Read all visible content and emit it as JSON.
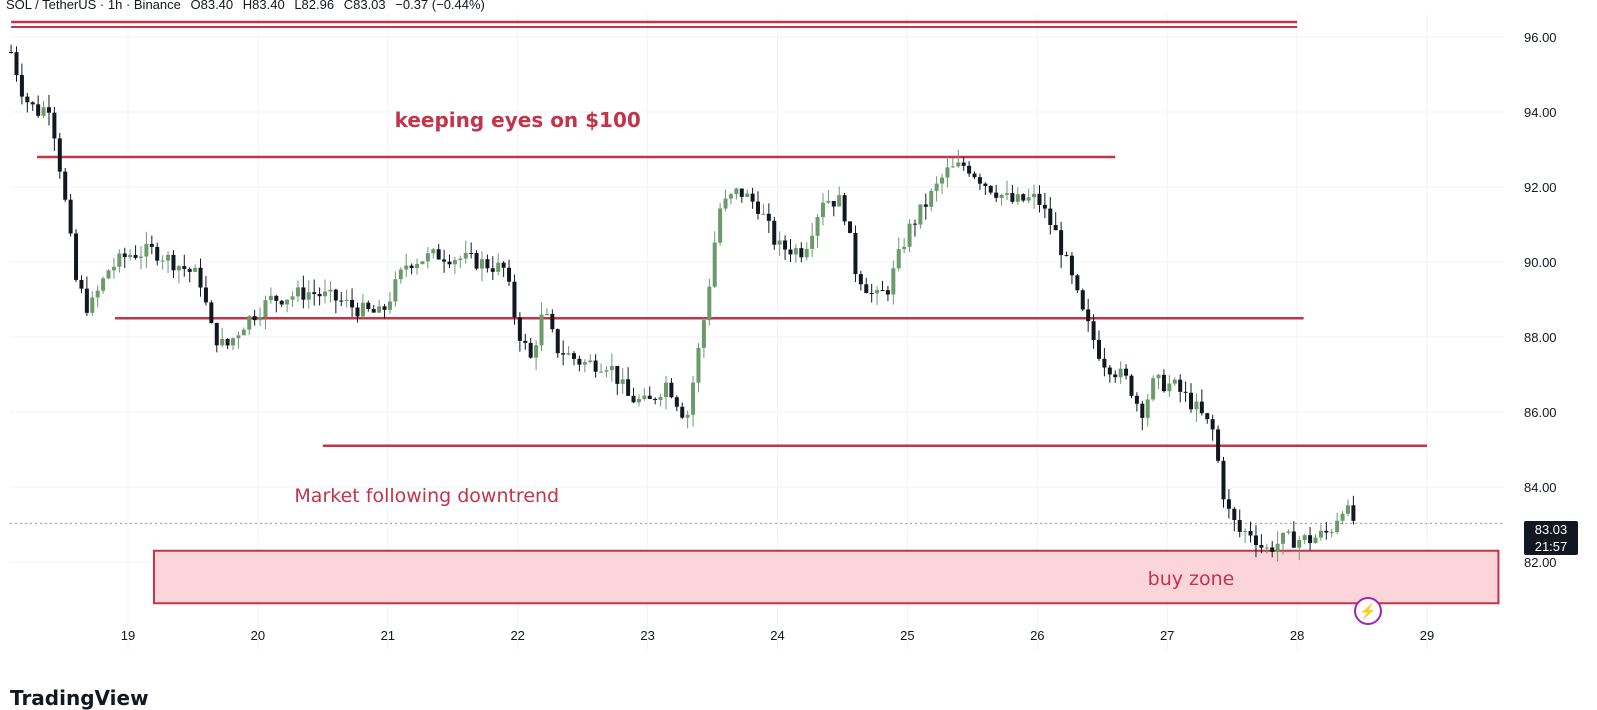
{
  "header": {
    "symbol": "SOL / TetherUS · 1h · Binance",
    "open": "O83.40",
    "high": "H83.40",
    "low": "L82.96",
    "close": "C83.03",
    "change": "−0.37 (−0.44%)"
  },
  "last_price": {
    "price": "83.03",
    "countdown": "21:57"
  },
  "branding": "TradingView",
  "colors": {
    "up": "#6b9a6b",
    "down": "#131722",
    "level_line": "#c2344a",
    "buy_zone_fill": "#fbd5da",
    "buy_zone_border": "#c2344a",
    "annotation_text": "#c2344a"
  },
  "chart_data": {
    "type": "candlestick",
    "symbol": "SOL / TetherUS",
    "interval": "1h",
    "exchange": "Binance",
    "x_ticks": [
      "19",
      "20",
      "21",
      "22",
      "23",
      "24",
      "25",
      "26",
      "27",
      "28",
      "29"
    ],
    "y_ticks": [
      "96.00",
      "94.00",
      "92.00",
      "90.00",
      "88.00",
      "86.00",
      "84.00",
      "82.00"
    ],
    "ylim": [
      80.8,
      96.9
    ],
    "xlim_days": [
      18.1,
      29.5
    ],
    "current_price": 83.03,
    "horizontal_levels": [
      {
        "price": 96.4,
        "from_day": 18.1,
        "to_day": 28.0,
        "double": true
      },
      {
        "price": 92.8,
        "from_day": 18.3,
        "to_day": 26.6
      },
      {
        "price": 88.5,
        "from_day": 18.9,
        "to_day": 28.05
      },
      {
        "price": 85.1,
        "from_day": 20.5,
        "to_day": 29.0
      }
    ],
    "buy_zone": {
      "price_low": 80.9,
      "price_high": 82.3,
      "from_day": 19.2,
      "to_day": 29.55,
      "label": "buy zone"
    },
    "annotations": [
      {
        "text": "keeping eyes on $100",
        "day": 22.0,
        "price": 93.6
      },
      {
        "text": "Market following downtrend",
        "day": 21.3,
        "price": 83.6
      }
    ],
    "close_path": [
      [
        18.1,
        95.6
      ],
      [
        18.2,
        94.4
      ],
      [
        18.3,
        94.0
      ],
      [
        18.4,
        94.2
      ],
      [
        18.5,
        92.0
      ],
      [
        18.6,
        89.5
      ],
      [
        18.7,
        88.7
      ],
      [
        18.85,
        89.8
      ],
      [
        19.0,
        90.2
      ],
      [
        19.2,
        90.3
      ],
      [
        19.4,
        89.9
      ],
      [
        19.55,
        89.6
      ],
      [
        19.65,
        88.1
      ],
      [
        19.75,
        87.7
      ],
      [
        19.9,
        88.4
      ],
      [
        20.1,
        89.0
      ],
      [
        20.4,
        89.2
      ],
      [
        20.6,
        89.0
      ],
      [
        20.8,
        88.7
      ],
      [
        20.95,
        88.6
      ],
      [
        21.15,
        90.0
      ],
      [
        21.4,
        90.2
      ],
      [
        21.7,
        90.0
      ],
      [
        21.9,
        89.8
      ],
      [
        22.0,
        88.2
      ],
      [
        22.1,
        87.4
      ],
      [
        22.2,
        88.7
      ],
      [
        22.3,
        87.7
      ],
      [
        22.5,
        87.3
      ],
      [
        22.7,
        87.3
      ],
      [
        22.85,
        86.4
      ],
      [
        23.0,
        86.2
      ],
      [
        23.15,
        86.8
      ],
      [
        23.3,
        85.8
      ],
      [
        23.45,
        88.8
      ],
      [
        23.55,
        91.4
      ],
      [
        23.7,
        91.9
      ],
      [
        23.85,
        91.5
      ],
      [
        24.0,
        90.4
      ],
      [
        24.2,
        90.3
      ],
      [
        24.35,
        91.7
      ],
      [
        24.5,
        91.6
      ],
      [
        24.6,
        89.8
      ],
      [
        24.75,
        89.0
      ],
      [
        24.85,
        89.3
      ],
      [
        25.0,
        90.8
      ],
      [
        25.15,
        91.6
      ],
      [
        25.3,
        92.4
      ],
      [
        25.45,
        92.6
      ],
      [
        25.6,
        92.1
      ],
      [
        25.8,
        91.6
      ],
      [
        26.0,
        91.7
      ],
      [
        26.15,
        90.7
      ],
      [
        26.25,
        89.7
      ],
      [
        26.35,
        88.6
      ],
      [
        26.5,
        87.4
      ],
      [
        26.7,
        86.8
      ],
      [
        26.8,
        86.0
      ],
      [
        26.9,
        86.8
      ],
      [
        27.05,
        86.7
      ],
      [
        27.2,
        86.2
      ],
      [
        27.35,
        85.5
      ],
      [
        27.45,
        83.5
      ],
      [
        27.55,
        82.8
      ],
      [
        27.65,
        82.8
      ],
      [
        27.75,
        82.3
      ],
      [
        27.9,
        82.6
      ],
      [
        28.1,
        82.6
      ],
      [
        28.25,
        82.8
      ],
      [
        28.35,
        83.5
      ],
      [
        28.45,
        83.03
      ]
    ]
  }
}
